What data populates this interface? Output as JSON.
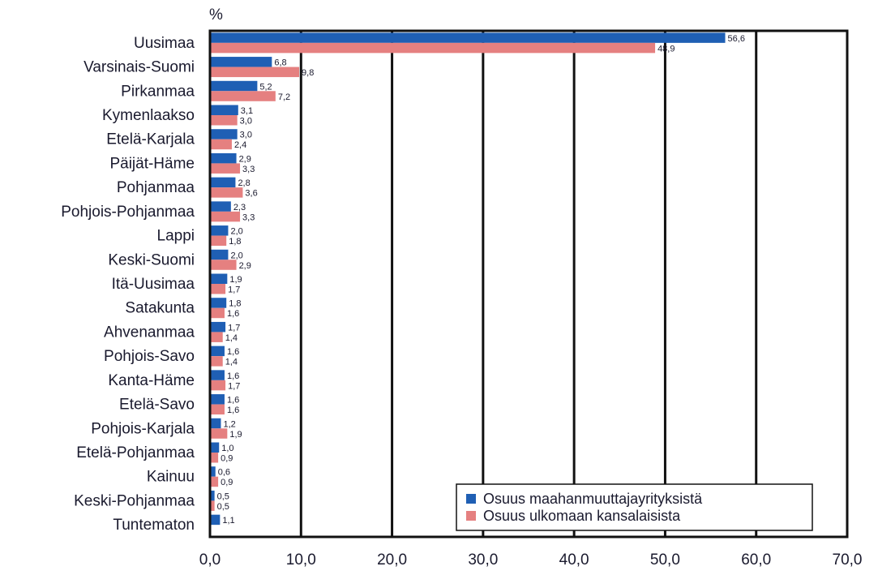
{
  "chart_data": {
    "type": "bar",
    "orientation": "horizontal",
    "title": "",
    "xlabel": "",
    "ylabel": "",
    "unit_label": "%",
    "xlim": [
      0,
      70
    ],
    "x_ticks": [
      "0,0",
      "10,0",
      "20,0",
      "30,0",
      "40,0",
      "50,0",
      "60,0",
      "70,0"
    ],
    "grid": "vertical",
    "legend_position": "bottom-right",
    "categories": [
      "Uusimaa",
      "Varsinais-Suomi",
      "Pirkanmaa",
      "Kymenlaakso",
      "Etelä-Karjala",
      "Päijät-Häme",
      "Pohjanmaa",
      "Pohjois-Pohjanmaa",
      "Lappi",
      "Keski-Suomi",
      "Itä-Uusimaa",
      "Satakunta",
      "Ahvenanmaa",
      "Pohjois-Savo",
      "Kanta-Häme",
      "Etelä-Savo",
      "Pohjois-Karjala",
      "Etelä-Pohjanmaa",
      "Kainuu",
      "Keski-Pohjanmaa",
      "Tuntematon"
    ],
    "series": [
      {
        "name": "Osuus maahanmuuttajayrityksistä",
        "color": "#1f5fb4",
        "values": [
          56.6,
          6.8,
          5.2,
          3.1,
          3.0,
          2.9,
          2.8,
          2.3,
          2.0,
          2.0,
          1.9,
          1.8,
          1.7,
          1.6,
          1.6,
          1.6,
          1.2,
          1.0,
          0.6,
          0.5,
          1.1
        ],
        "labels": [
          "56,6",
          "6,8",
          "5,2",
          "3,1",
          "3,0",
          "2,9",
          "2,8",
          "2,3",
          "2,0",
          "2,0",
          "1,9",
          "1,8",
          "1,7",
          "1,6",
          "1,6",
          "1,6",
          "1,2",
          "1,0",
          "0,6",
          "0,5",
          "1,1"
        ]
      },
      {
        "name": "Osuus ulkomaan kansalaisista",
        "color": "#e58080",
        "values": [
          48.9,
          9.8,
          7.2,
          3.0,
          2.4,
          3.3,
          3.6,
          3.3,
          1.8,
          2.9,
          1.7,
          1.6,
          1.4,
          1.4,
          1.7,
          1.6,
          1.9,
          0.9,
          0.9,
          0.5,
          null
        ],
        "labels": [
          "48,9",
          "9,8",
          "7,2",
          "3,0",
          "2,4",
          "3,3",
          "3,6",
          "3,3",
          "1,8",
          "2,9",
          "1,7",
          "1,6",
          "1,4",
          "1,4",
          "1,7",
          "1,6",
          "1,9",
          "0,9",
          "0,9",
          "0,5",
          ""
        ]
      }
    ]
  }
}
